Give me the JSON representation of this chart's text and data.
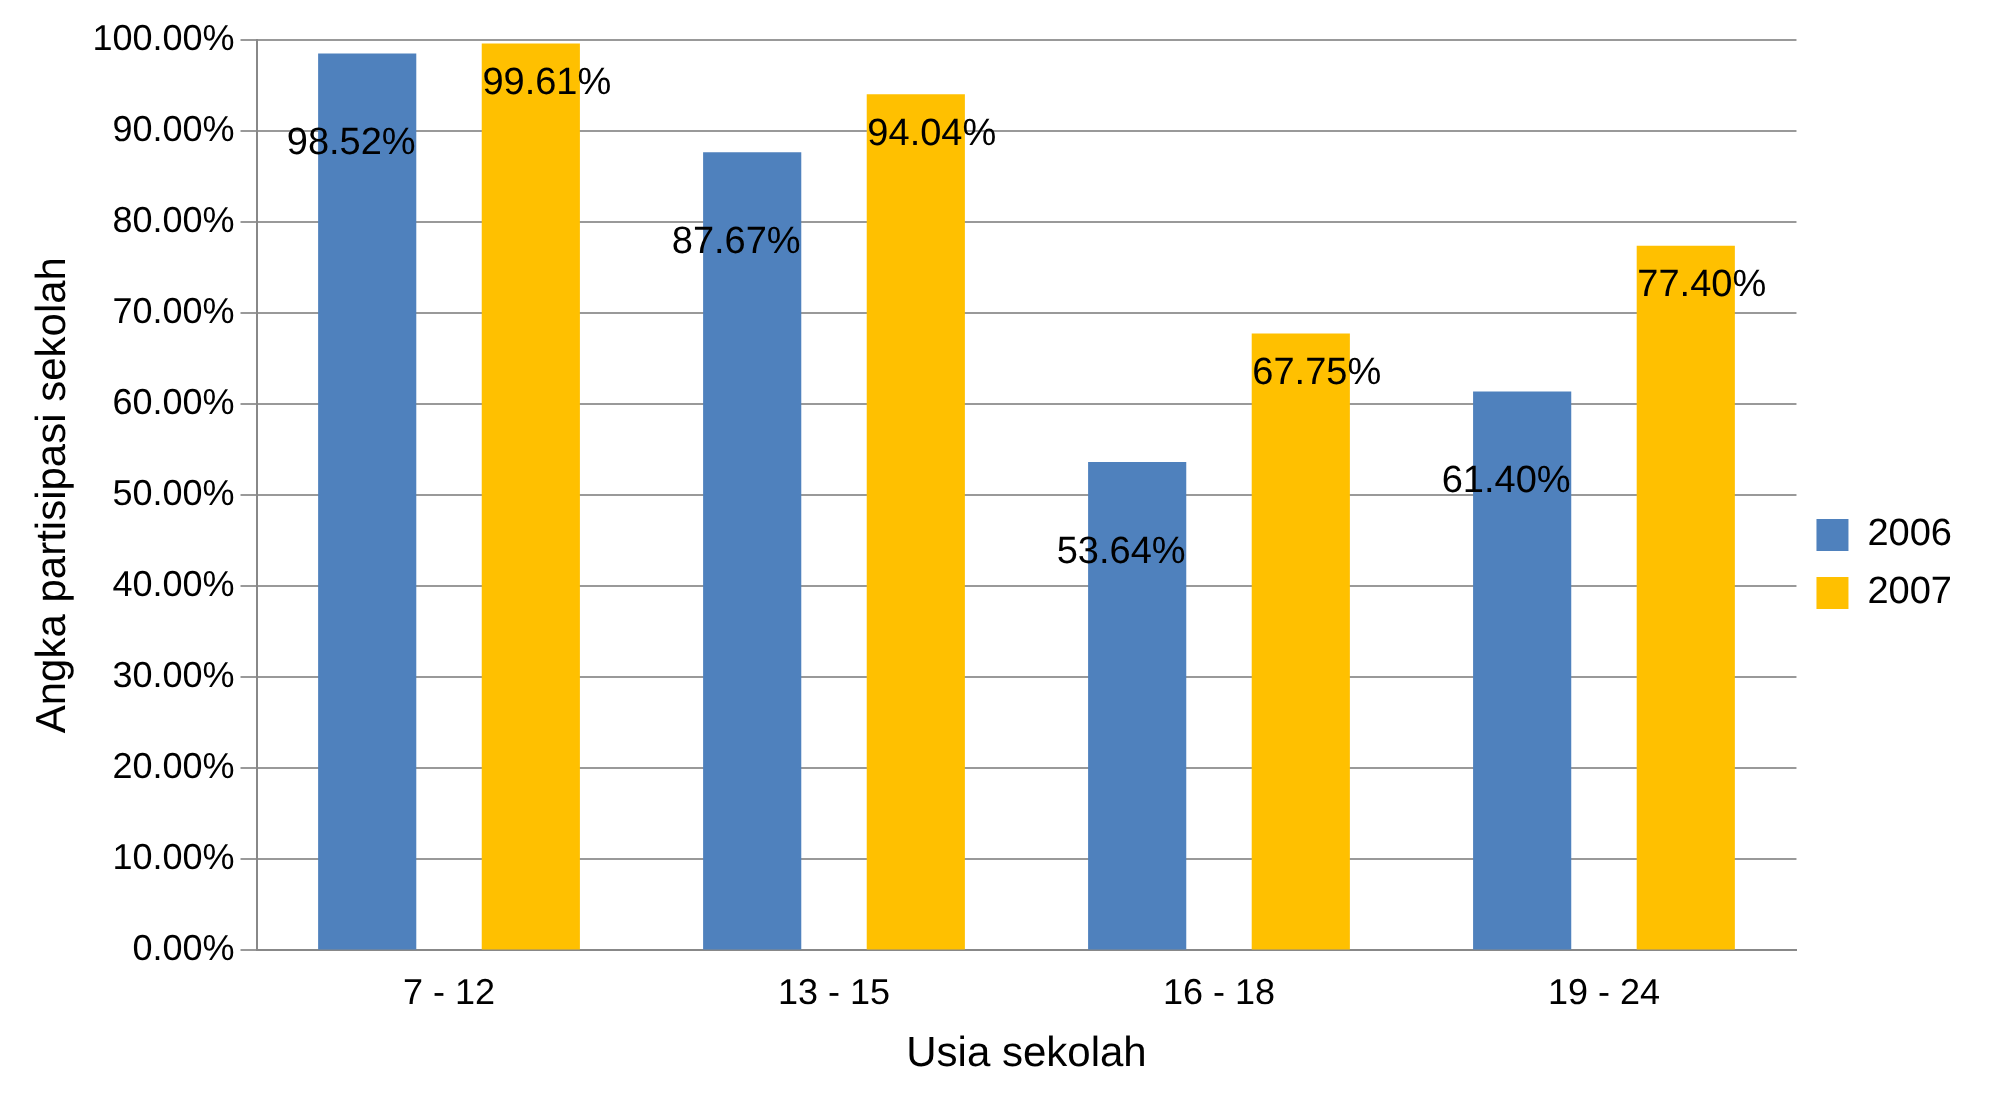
{
  "chart_data": {
    "type": "bar",
    "xlabel": "Usia sekolah",
    "ylabel": "Angka partisipasi sekolah",
    "categories": [
      "7 - 12",
      "13 - 15",
      "16 - 18",
      "19 - 24"
    ],
    "series": [
      {
        "name": "2006",
        "color": "#4f81bd",
        "values": [
          98.52,
          87.67,
          53.64,
          61.4
        ],
        "value_labels": [
          "98.52%",
          "87.67%",
          "53.64%",
          "61.40%"
        ]
      },
      {
        "name": "2007",
        "color": "#ffc000",
        "values": [
          99.61,
          94.04,
          67.75,
          77.4
        ],
        "value_labels": [
          "99.61%",
          "94.04%",
          "67.75%",
          "77.40%"
        ]
      }
    ],
    "ylim": [
      0,
      100
    ],
    "yticks": [
      {
        "value": 0,
        "label": "0.00%"
      },
      {
        "value": 10,
        "label": "10.00%"
      },
      {
        "value": 20,
        "label": "20.00%"
      },
      {
        "value": 30,
        "label": "30.00%"
      },
      {
        "value": 40,
        "label": "40.00%"
      },
      {
        "value": 50,
        "label": "50.00%"
      },
      {
        "value": 60,
        "label": "60.00%"
      },
      {
        "value": 70,
        "label": "70.00%"
      },
      {
        "value": 80,
        "label": "80.00%"
      },
      {
        "value": 90,
        "label": "90.00%"
      },
      {
        "value": 100,
        "label": "100.00%"
      }
    ],
    "grid": "y",
    "legend": "right"
  }
}
